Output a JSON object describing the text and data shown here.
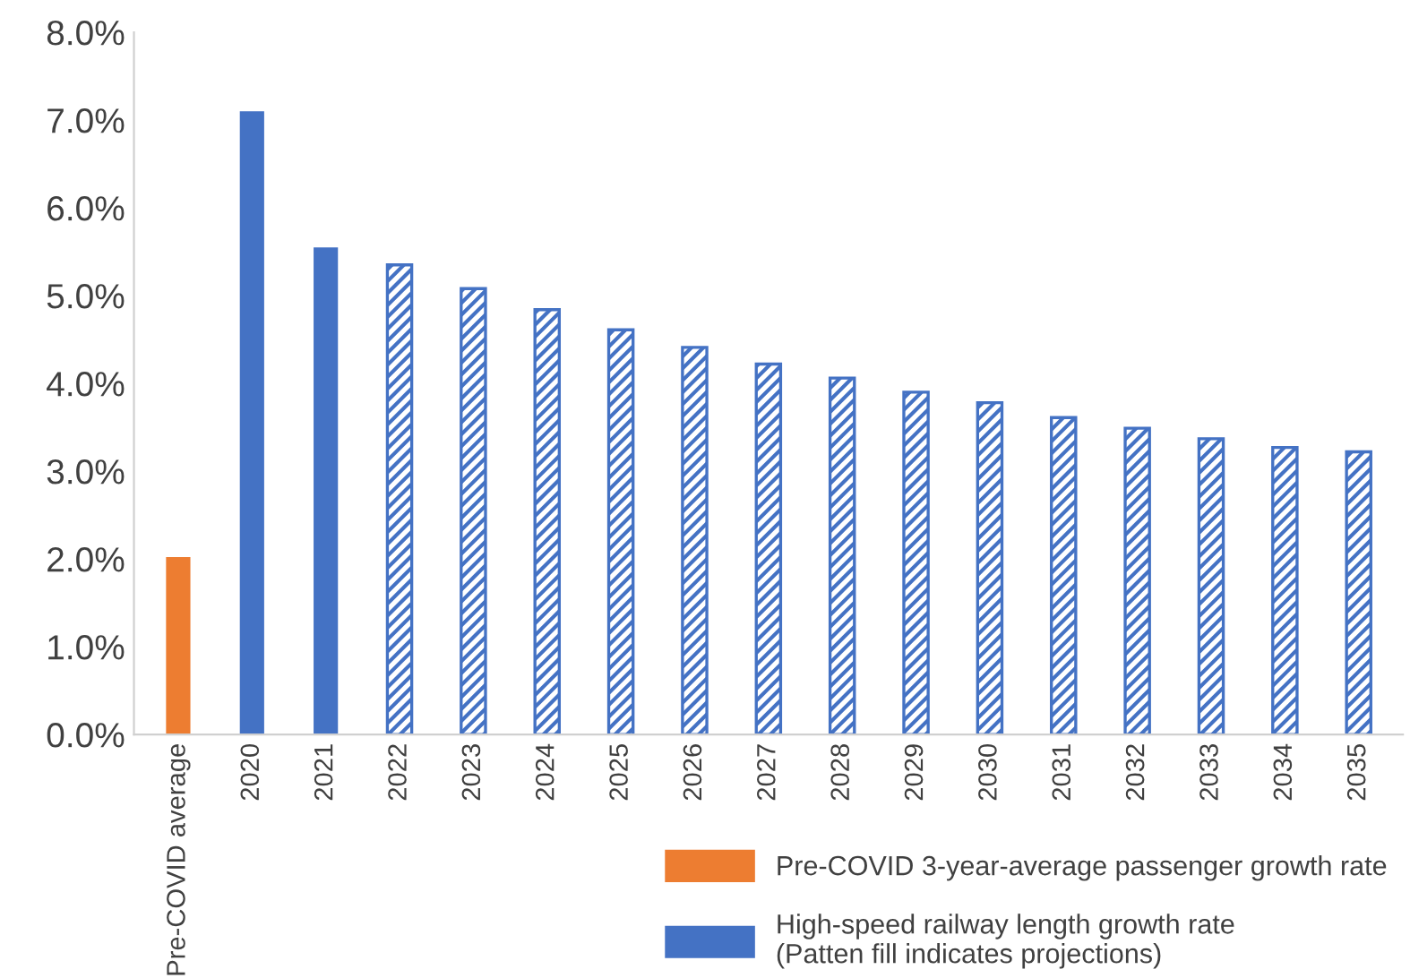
{
  "chart_data": {
    "type": "bar",
    "categories": [
      "Pre-COVID average",
      "2020",
      "2021",
      "2022",
      "2023",
      "2024",
      "2025",
      "2026",
      "2027",
      "2028",
      "2029",
      "2030",
      "2031",
      "2032",
      "2033",
      "2034",
      "2035"
    ],
    "series": [
      {
        "name": "Pre-COVID 3-year-average passenger growth rate",
        "color": "#ed7d31",
        "values": [
          2.02,
          null,
          null,
          null,
          null,
          null,
          null,
          null,
          null,
          null,
          null,
          null,
          null,
          null,
          null,
          null,
          null
        ]
      },
      {
        "name": "High-speed railway length growth rate\n(Patten fill indicates projections)",
        "color": "#4472c4",
        "values": [
          null,
          7.1,
          5.55,
          null,
          null,
          null,
          null,
          null,
          null,
          null,
          null,
          null,
          null,
          null,
          null,
          null,
          null
        ]
      },
      {
        "color": "#4472c4",
        "line_style": "dashed",
        "values": [
          null,
          null,
          null,
          5.35,
          5.08,
          4.84,
          4.61,
          4.41,
          4.22,
          4.06,
          3.9,
          3.78,
          3.61,
          3.49,
          3.37,
          3.27,
          3.22
        ]
      }
    ],
    "ylim": [
      0,
      8
    ],
    "yticks": [
      {
        "value": 0,
        "label": "0.0%"
      },
      {
        "value": 1,
        "label": "1.0%"
      },
      {
        "value": 2,
        "label": "2.0%"
      },
      {
        "value": 3,
        "label": "3.0%"
      },
      {
        "value": 4,
        "label": "4.0%"
      },
      {
        "value": 5,
        "label": "5.0%"
      },
      {
        "value": 6,
        "label": "6.0%"
      },
      {
        "value": 7,
        "label": "7.0%"
      },
      {
        "value": 8,
        "label": "8.0%"
      }
    ],
    "grid": false,
    "legend": "bottom"
  }
}
